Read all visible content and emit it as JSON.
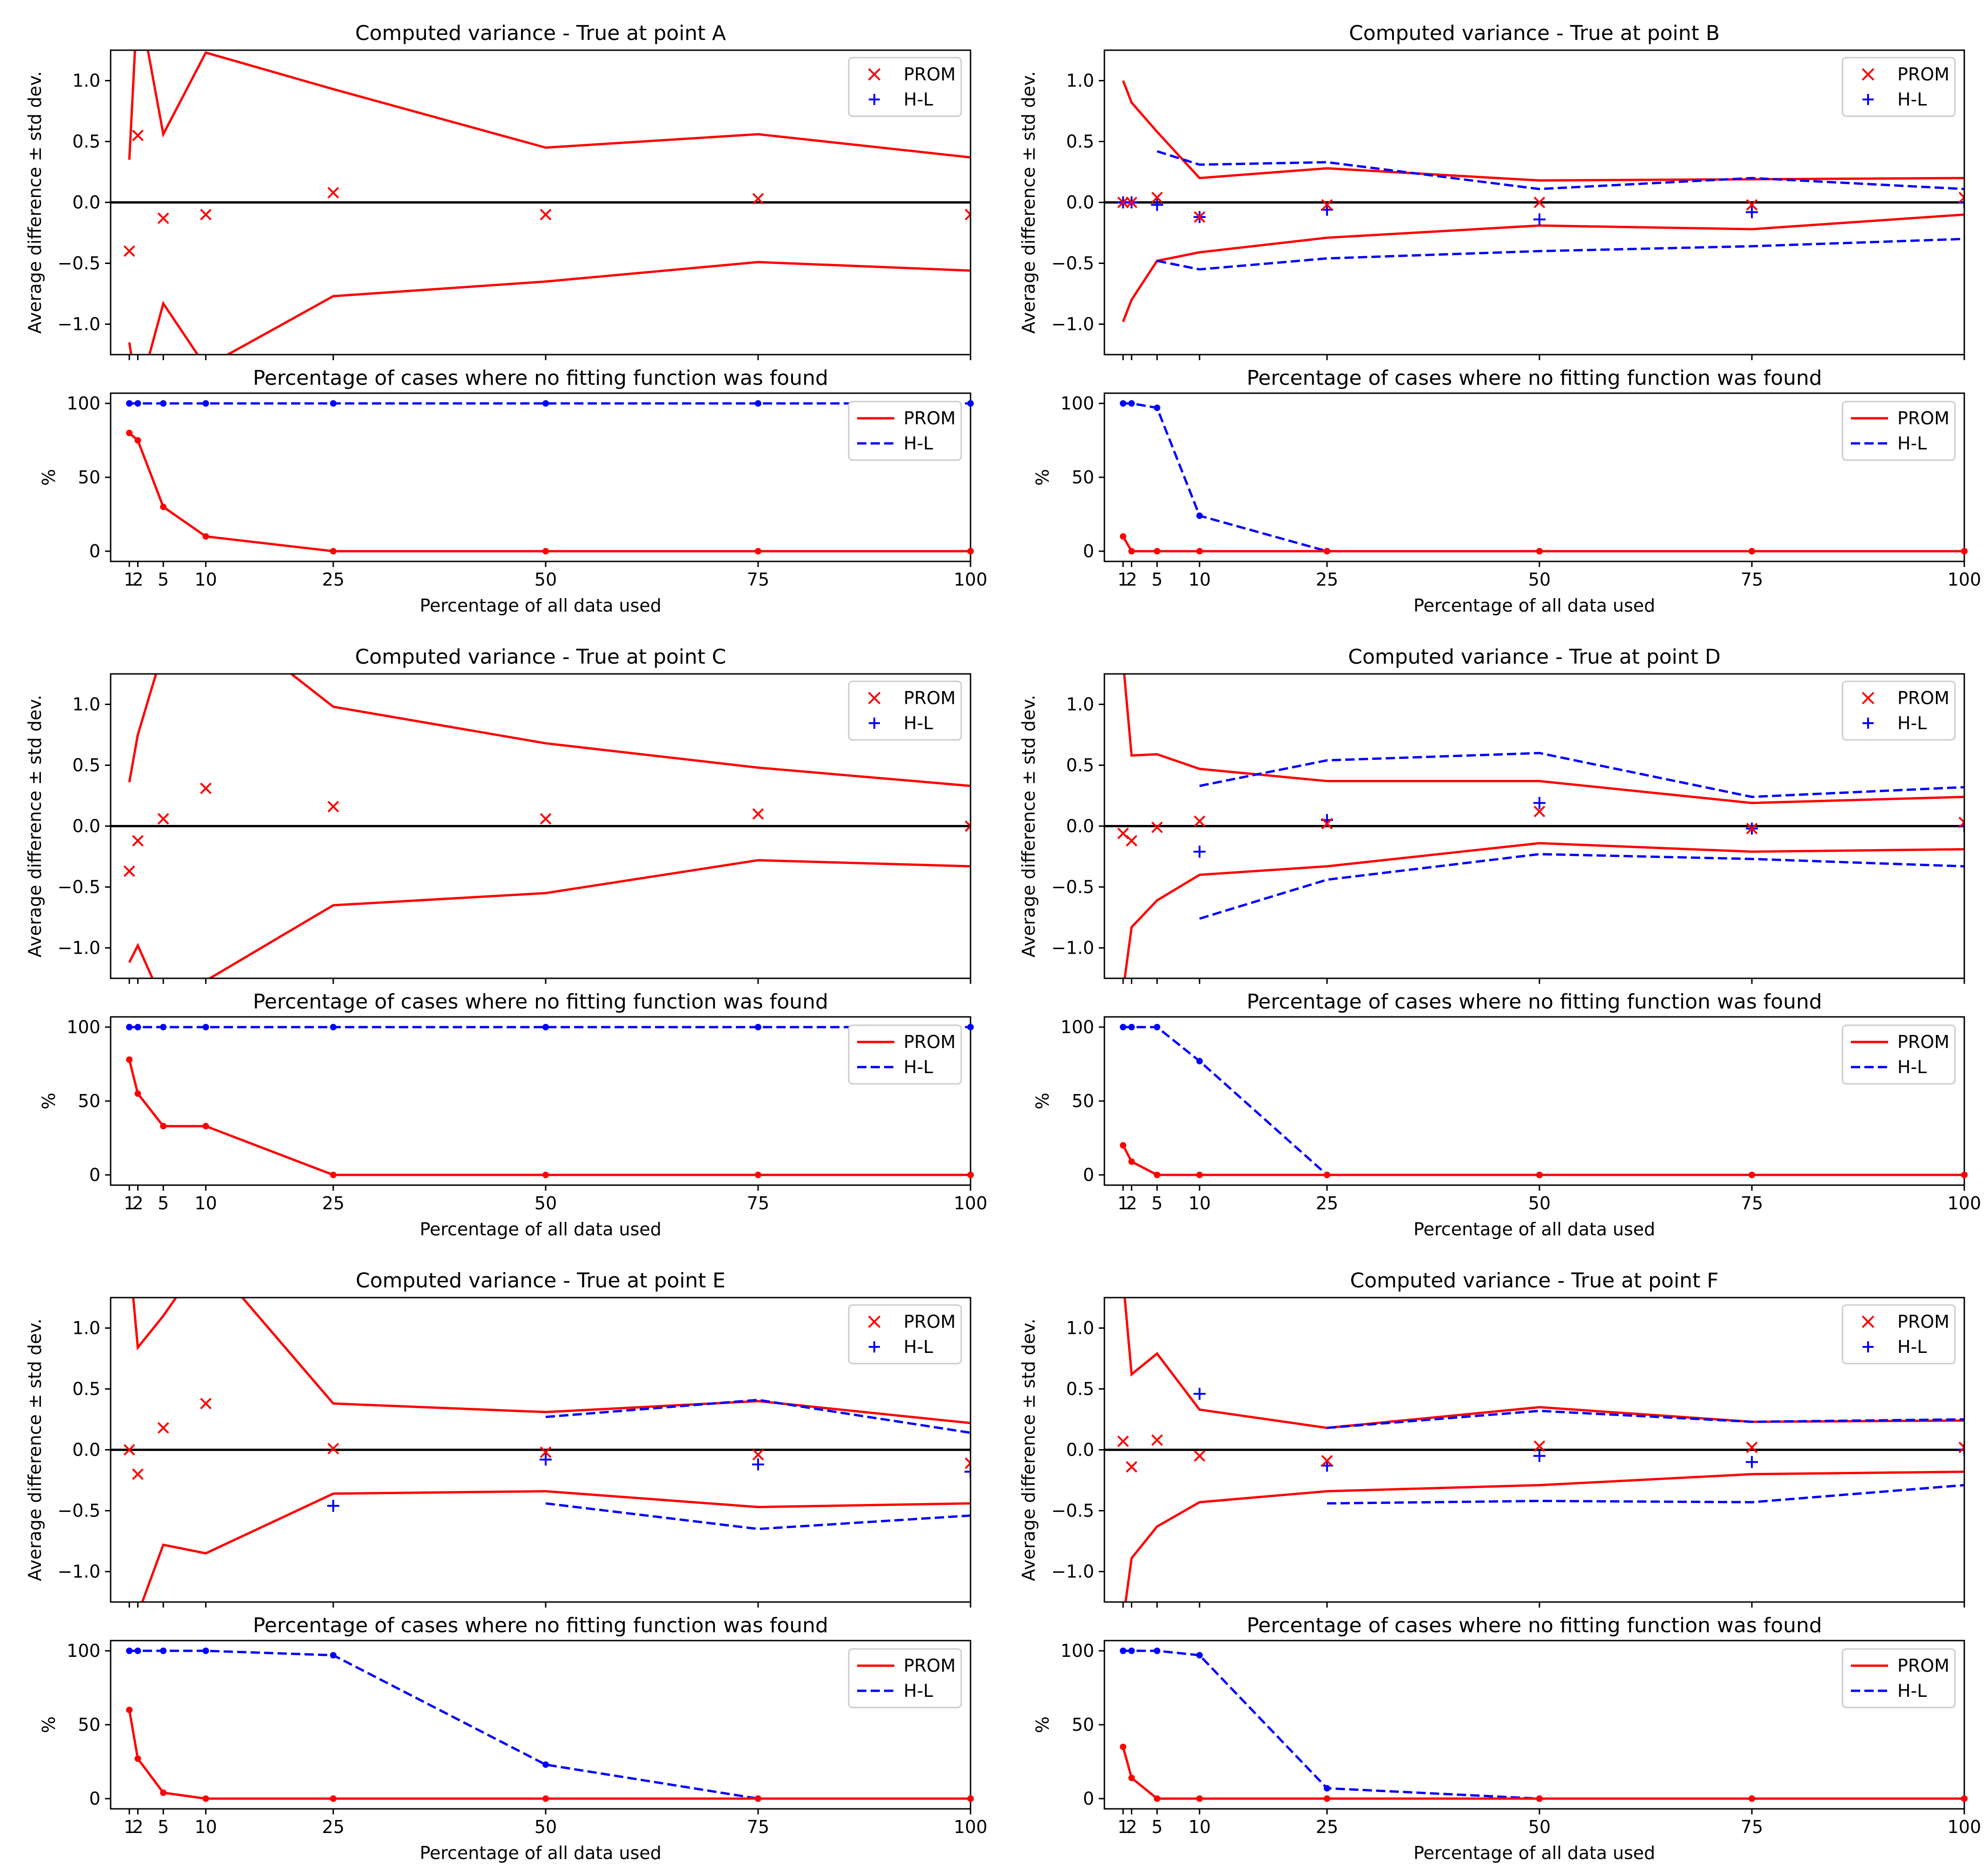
{
  "colors": {
    "prom": "#ff0000",
    "hl": "#0000ff",
    "axis": "#000000",
    "background": "#ffffff"
  },
  "icons": {
    "prom_marker": "x-marker-icon",
    "hl_marker": "plus-marker-icon"
  },
  "x_label": "Percentage of all data used",
  "x_ticks": [
    1,
    2,
    5,
    10,
    25,
    50,
    75,
    100
  ],
  "tick_texts": {
    "variance_y": [
      "−1.0",
      "−0.5",
      "0.0",
      "0.5",
      "1.0"
    ],
    "percent_y": [
      "0",
      "50",
      "100"
    ],
    "x": [
      "1",
      "2",
      "5",
      "10",
      "25",
      "50",
      "75",
      "100"
    ]
  },
  "chart_data": [
    {
      "id": "A",
      "variance": {
        "type": "line",
        "title": "Computed variance - True at point A",
        "xlabel": "",
        "ylabel": "Average difference ± std dev.",
        "xlim": [
          0,
          100
        ],
        "ylim": [
          -1.25,
          1.25
        ],
        "legend": {
          "position": "top-right",
          "entries": [
            "PROM",
            "H-L"
          ]
        },
        "prom": {
          "x": [
            1,
            2,
            5,
            10,
            25,
            50,
            75,
            100
          ],
          "mean": [
            -0.4,
            0.55,
            -0.13,
            -0.1,
            0.08,
            -0.1,
            0.03,
            -0.1
          ],
          "upper": [
            0.35,
            1.7,
            0.56,
            1.23,
            0.93,
            0.45,
            0.56,
            0.37
          ],
          "lower": [
            -1.15,
            -1.6,
            -0.83,
            -1.35,
            -0.77,
            -0.65,
            -0.49,
            -0.56
          ]
        },
        "hl": null
      },
      "failure": {
        "type": "line",
        "title": "Percentage of cases where no fitting function was found",
        "xlabel": "Percentage of all data used",
        "ylabel": "%",
        "xlim": [
          0,
          100
        ],
        "ylim": [
          0,
          100
        ],
        "legend": {
          "position": "top-right",
          "entries": [
            "PROM",
            "H-L"
          ]
        },
        "x": [
          1,
          2,
          5,
          10,
          25,
          50,
          75,
          100
        ],
        "series": [
          {
            "name": "PROM",
            "values": [
              80,
              75,
              30,
              10,
              0,
              0,
              0,
              0
            ]
          },
          {
            "name": "H-L",
            "values": [
              100,
              100,
              100,
              100,
              100,
              100,
              100,
              100
            ]
          }
        ]
      }
    },
    {
      "id": "B",
      "variance": {
        "type": "line",
        "title": "Computed variance - True at point B",
        "xlabel": "",
        "ylabel": "Average difference ± std dev.",
        "xlim": [
          0,
          100
        ],
        "ylim": [
          -1.25,
          1.25
        ],
        "legend": {
          "position": "top-right",
          "entries": [
            "PROM",
            "H-L"
          ]
        },
        "prom": {
          "x": [
            1,
            2,
            5,
            10,
            25,
            50,
            75,
            100
          ],
          "mean": [
            0.0,
            0.0,
            0.04,
            -0.12,
            -0.02,
            0.0,
            -0.02,
            0.04
          ],
          "upper": [
            1.0,
            0.82,
            0.58,
            0.2,
            0.28,
            0.18,
            0.19,
            0.2
          ],
          "lower": [
            -0.98,
            -0.8,
            -0.48,
            -0.41,
            -0.29,
            -0.19,
            -0.22,
            -0.1
          ]
        },
        "hl": {
          "x": [
            1,
            2,
            5,
            10,
            25,
            50,
            75,
            100
          ],
          "mean": [
            0.0,
            0.0,
            -0.02,
            -0.12,
            -0.06,
            -0.14,
            -0.08,
            0.0
          ],
          "upper": [
            null,
            null,
            0.42,
            0.31,
            0.33,
            0.11,
            0.2,
            0.11
          ],
          "lower": [
            null,
            null,
            -0.48,
            -0.55,
            -0.46,
            -0.4,
            -0.36,
            -0.3
          ]
        }
      },
      "failure": {
        "type": "line",
        "title": "Percentage of cases where no fitting function was found",
        "xlabel": "Percentage of all data used",
        "ylabel": "%",
        "xlim": [
          0,
          100
        ],
        "ylim": [
          0,
          100
        ],
        "legend": {
          "position": "top-right",
          "entries": [
            "PROM",
            "H-L"
          ]
        },
        "x": [
          1,
          2,
          5,
          10,
          25,
          50,
          75,
          100
        ],
        "series": [
          {
            "name": "PROM",
            "values": [
              10,
              0,
              0,
              0,
              0,
              0,
              0,
              0
            ]
          },
          {
            "name": "H-L",
            "values": [
              100,
              100,
              97,
              24,
              0,
              0,
              0,
              0
            ]
          }
        ]
      }
    },
    {
      "id": "C",
      "variance": {
        "type": "line",
        "title": "Computed variance - True at point C",
        "xlabel": "",
        "ylabel": "Average difference ± std dev.",
        "xlim": [
          0,
          100
        ],
        "ylim": [
          -1.25,
          1.25
        ],
        "legend": {
          "position": "top-right",
          "entries": [
            "PROM",
            "H-L"
          ]
        },
        "prom": {
          "x": [
            1,
            2,
            5,
            10,
            25,
            50,
            75,
            100
          ],
          "mean": [
            -0.37,
            -0.12,
            0.06,
            0.31,
            0.16,
            0.06,
            0.1,
            0.0
          ],
          "upper": [
            0.36,
            0.75,
            1.45,
            1.8,
            0.98,
            0.68,
            0.48,
            0.33
          ],
          "lower": [
            -1.12,
            -0.98,
            -1.45,
            -1.27,
            -0.65,
            -0.55,
            -0.28,
            -0.33
          ]
        },
        "hl": null
      },
      "failure": {
        "type": "line",
        "title": "Percentage of cases where no fitting function was found",
        "xlabel": "Percentage of all data used",
        "ylabel": "%",
        "xlim": [
          0,
          100
        ],
        "ylim": [
          0,
          100
        ],
        "legend": {
          "position": "top-right",
          "entries": [
            "PROM",
            "H-L"
          ]
        },
        "x": [
          1,
          2,
          5,
          10,
          25,
          50,
          75,
          100
        ],
        "series": [
          {
            "name": "PROM",
            "values": [
              78,
              55,
              33,
              33,
              0,
              0,
              0,
              0
            ]
          },
          {
            "name": "H-L",
            "values": [
              100,
              100,
              100,
              100,
              100,
              100,
              100,
              100
            ]
          }
        ]
      }
    },
    {
      "id": "D",
      "variance": {
        "type": "line",
        "title": "Computed variance - True at point D",
        "xlabel": "",
        "ylabel": "Average difference ± std dev.",
        "xlim": [
          0,
          100
        ],
        "ylim": [
          -1.25,
          1.25
        ],
        "legend": {
          "position": "top-right",
          "entries": [
            "PROM",
            "H-L"
          ]
        },
        "prom": {
          "x": [
            1,
            2,
            5,
            10,
            25,
            50,
            75,
            100
          ],
          "mean": [
            -0.06,
            -0.12,
            -0.01,
            0.04,
            0.02,
            0.12,
            -0.02,
            0.03
          ],
          "upper": [
            1.35,
            0.58,
            0.59,
            0.47,
            0.37,
            0.37,
            0.19,
            0.24
          ],
          "lower": [
            -1.35,
            -0.83,
            -0.61,
            -0.4,
            -0.33,
            -0.14,
            -0.21,
            -0.19
          ]
        },
        "hl": {
          "x": [
            10,
            25,
            50,
            75,
            100
          ],
          "mean": [
            -0.21,
            0.05,
            0.19,
            -0.02,
            0.0
          ],
          "upper": [
            0.33,
            0.54,
            0.6,
            0.24,
            0.32
          ],
          "lower": [
            -0.76,
            -0.44,
            -0.23,
            -0.27,
            -0.33
          ]
        }
      },
      "failure": {
        "type": "line",
        "title": "Percentage of cases where no fitting function was found",
        "xlabel": "Percentage of all data used",
        "ylabel": "%",
        "xlim": [
          0,
          100
        ],
        "ylim": [
          0,
          100
        ],
        "legend": {
          "position": "top-right",
          "entries": [
            "PROM",
            "H-L"
          ]
        },
        "x": [
          1,
          2,
          5,
          10,
          25,
          50,
          75,
          100
        ],
        "series": [
          {
            "name": "PROM",
            "values": [
              20,
              9,
              0,
              0,
              0,
              0,
              0,
              0
            ]
          },
          {
            "name": "H-L",
            "values": [
              100,
              100,
              100,
              77,
              0,
              0,
              0,
              0
            ]
          }
        ]
      }
    },
    {
      "id": "E",
      "variance": {
        "type": "line",
        "title": "Computed variance - True at point E",
        "xlabel": "",
        "ylabel": "Average difference ± std dev.",
        "xlim": [
          0,
          100
        ],
        "ylim": [
          -1.25,
          1.25
        ],
        "legend": {
          "position": "top-right",
          "entries": [
            "PROM",
            "H-L"
          ]
        },
        "prom": {
          "x": [
            1,
            2,
            5,
            10,
            25,
            50,
            75,
            100
          ],
          "mean": [
            0.0,
            -0.2,
            0.18,
            0.38,
            0.01,
            -0.02,
            -0.04,
            -0.11
          ],
          "upper": [
            1.6,
            0.84,
            1.1,
            1.6,
            0.38,
            0.31,
            0.4,
            0.22
          ],
          "lower": [
            -1.35,
            -1.35,
            -0.78,
            -0.85,
            -0.36,
            -0.34,
            -0.47,
            -0.44
          ]
        },
        "hl": {
          "x": [
            25,
            50,
            75,
            100
          ],
          "mean": [
            -0.46,
            -0.08,
            -0.12,
            -0.18
          ],
          "upper": [
            null,
            0.27,
            0.41,
            0.14
          ],
          "lower": [
            null,
            -0.44,
            -0.65,
            -0.54
          ]
        }
      },
      "failure": {
        "type": "line",
        "title": "Percentage of cases where no fitting function was found",
        "xlabel": "Percentage of all data used",
        "ylabel": "%",
        "xlim": [
          0,
          100
        ],
        "ylim": [
          0,
          100
        ],
        "legend": {
          "position": "top-right",
          "entries": [
            "PROM",
            "H-L"
          ]
        },
        "x": [
          1,
          2,
          5,
          10,
          25,
          50,
          75,
          100
        ],
        "series": [
          {
            "name": "PROM",
            "values": [
              60,
              27,
              4,
              0,
              0,
              0,
              0,
              0
            ]
          },
          {
            "name": "H-L",
            "values": [
              100,
              100,
              100,
              100,
              97,
              23,
              0,
              0
            ]
          }
        ]
      }
    },
    {
      "id": "F",
      "variance": {
        "type": "line",
        "title": "Computed variance - True at point F",
        "xlabel": "",
        "ylabel": "Average difference ± std dev.",
        "xlim": [
          0,
          100
        ],
        "ylim": [
          -1.25,
          1.25
        ],
        "legend": {
          "position": "top-right",
          "entries": [
            "PROM",
            "H-L"
          ]
        },
        "prom": {
          "x": [
            1,
            2,
            5,
            10,
            25,
            50,
            75,
            100
          ],
          "mean": [
            0.07,
            -0.14,
            0.08,
            -0.05,
            -0.09,
            0.03,
            0.02,
            0.02
          ],
          "upper": [
            1.4,
            0.62,
            0.79,
            0.33,
            0.18,
            0.35,
            0.23,
            0.24
          ],
          "lower": [
            -1.4,
            -0.89,
            -0.63,
            -0.43,
            -0.34,
            -0.29,
            -0.2,
            -0.18
          ]
        },
        "hl": {
          "x": [
            10,
            25,
            50,
            75,
            100
          ],
          "mean": [
            0.46,
            -0.13,
            -0.05,
            -0.1,
            0.0
          ],
          "upper": [
            null,
            0.18,
            0.32,
            0.23,
            0.25
          ],
          "lower": [
            null,
            -0.44,
            -0.42,
            -0.43,
            -0.29
          ]
        }
      },
      "failure": {
        "type": "line",
        "title": "Percentage of cases where no fitting function was found",
        "xlabel": "Percentage of all data used",
        "ylabel": "%",
        "xlim": [
          0,
          100
        ],
        "ylim": [
          0,
          100
        ],
        "legend": {
          "position": "top-right",
          "entries": [
            "PROM",
            "H-L"
          ]
        },
        "x": [
          1,
          2,
          5,
          10,
          25,
          50,
          75,
          100
        ],
        "series": [
          {
            "name": "PROM",
            "values": [
              35,
              14,
              0,
              0,
              0,
              0,
              0,
              0
            ]
          },
          {
            "name": "H-L",
            "values": [
              100,
              100,
              100,
              97,
              7,
              0,
              0,
              0
            ]
          }
        ]
      }
    }
  ]
}
